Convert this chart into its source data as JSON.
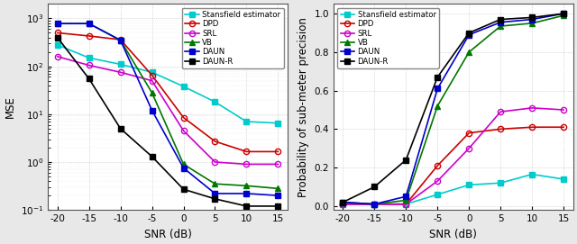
{
  "snr": [
    -20,
    -15,
    -10,
    -5,
    0,
    5,
    10,
    15
  ],
  "mse": {
    "Stansfield estimator": [
      280,
      150,
      110,
      75,
      38,
      18,
      7,
      6.5
    ],
    "DPD": [
      500,
      430,
      360,
      65,
      8.5,
      2.7,
      1.65,
      1.65
    ],
    "SRL": [
      160,
      105,
      75,
      50,
      4.5,
      1.0,
      0.9,
      0.9
    ],
    "VB": [
      780,
      780,
      350,
      28,
      0.9,
      0.35,
      0.32,
      0.28
    ],
    "DAUN": [
      780,
      780,
      350,
      12,
      0.75,
      0.22,
      0.22,
      0.2
    ],
    "DAUN-R": [
      400,
      55,
      5,
      1.3,
      0.27,
      0.17,
      0.12,
      0.12
    ]
  },
  "prob": {
    "Stansfield estimator": [
      0.01,
      0.01,
      0.01,
      0.06,
      0.11,
      0.12,
      0.165,
      0.14
    ],
    "DPD": [
      0.01,
      0.01,
      0.01,
      0.21,
      0.38,
      0.4,
      0.41,
      0.41
    ],
    "SRL": [
      0.01,
      0.01,
      0.01,
      0.13,
      0.3,
      0.49,
      0.51,
      0.5
    ],
    "VB": [
      0.02,
      0.01,
      0.03,
      0.52,
      0.8,
      0.935,
      0.95,
      0.99
    ],
    "DAUN": [
      0.02,
      0.01,
      0.05,
      0.61,
      0.89,
      0.955,
      0.97,
      1.0
    ],
    "DAUN-R": [
      0.02,
      0.1,
      0.24,
      0.67,
      0.9,
      0.97,
      0.98,
      1.0
    ]
  },
  "colors": {
    "Stansfield estimator": "#00CCCC",
    "DPD": "#CC0000",
    "SRL": "#CC00CC",
    "VB": "#007700",
    "DAUN": "#0000CC",
    "DAUN-R": "#000000"
  },
  "markers": {
    "Stansfield estimator": "s",
    "DPD": "o",
    "SRL": "o",
    "VB": "^",
    "DAUN": "s",
    "DAUN-R": "s"
  },
  "marker_filled": {
    "Stansfield estimator": true,
    "DPD": false,
    "SRL": false,
    "VB": true,
    "DAUN": true,
    "DAUN-R": true
  },
  "ylim_mse": [
    0.1,
    2000
  ],
  "ylim_prob": [
    -0.02,
    1.05
  ],
  "xlabel": "SNR (dB)",
  "ylabel_mse": "MSE",
  "ylabel_prob": "Probability of sub-meter precision",
  "bg_color": "#e8e8e8",
  "axes_bg": "#ffffff"
}
